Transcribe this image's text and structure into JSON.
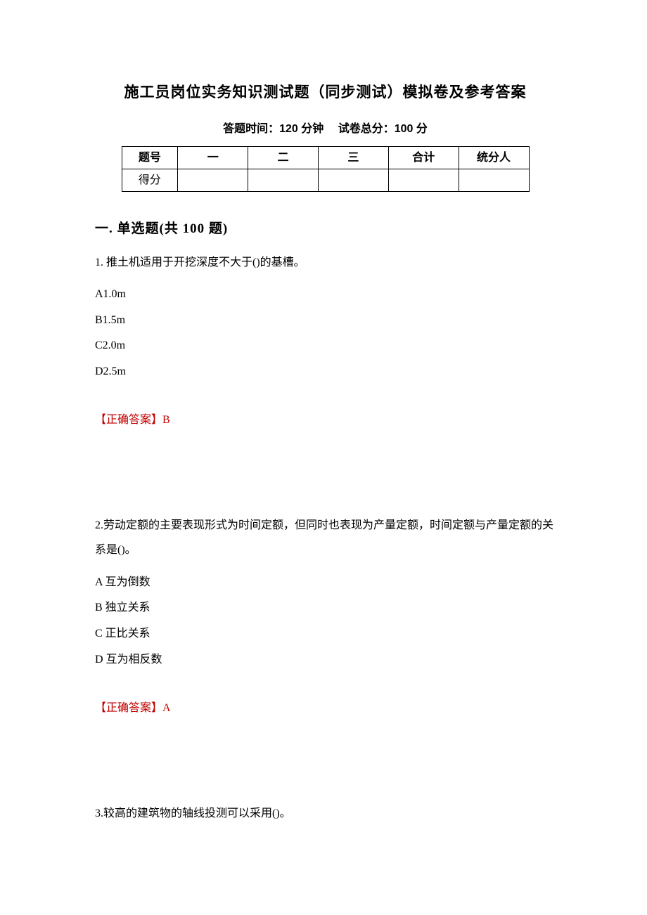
{
  "title": "施工员岗位实务知识测试题（同步测试）模拟卷及参考答案",
  "meta": "答题时间：120 分钟　 试卷总分：100 分",
  "table": {
    "row1": [
      "题号",
      "一",
      "二",
      "三",
      "合计",
      "统分人"
    ],
    "row2": [
      "得分",
      "",
      "",
      "",
      "",
      ""
    ]
  },
  "section_heading": "一. 单选题(共 100 题)",
  "questions": [
    {
      "stem": "1. 推土机适用于开挖深度不大于()的基槽。",
      "options": [
        "A1.0m",
        "B1.5m",
        "C2.0m",
        "D2.5m"
      ],
      "answer_label": "【正确答案】",
      "answer_value": "B"
    },
    {
      "stem": "2.劳动定额的主要表现形式为时间定额，但同时也表现为产量定额，时间定额与产量定额的关系是()。",
      "options": [
        "A 互为倒数",
        "B 独立关系",
        "C 正比关系",
        "D 互为相反数"
      ],
      "answer_label": "【正确答案】",
      "answer_value": "A"
    },
    {
      "stem": "3.较高的建筑物的轴线投测可以采用()。",
      "options": [],
      "answer_label": "",
      "answer_value": ""
    }
  ],
  "colors": {
    "text": "#000000",
    "answer": "#c00000",
    "background": "#ffffff",
    "border": "#000000"
  },
  "fonts": {
    "body_family": "SimSun",
    "title_size": 21,
    "body_size": 16,
    "section_size": 19
  }
}
